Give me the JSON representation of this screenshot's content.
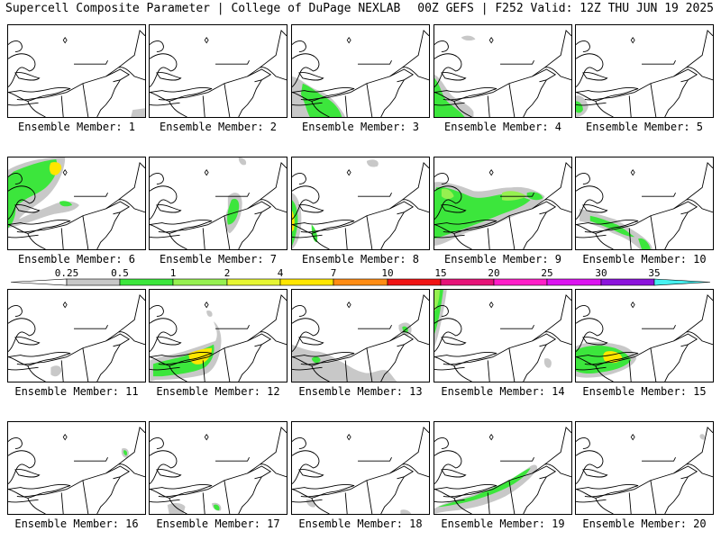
{
  "header": {
    "title_left": "Supercell Composite Parameter | College of DuPage NEXLAB",
    "title_right": "00Z GEFS | F252 Valid: 12Z THU JUN 19 2025"
  },
  "legend": {
    "labels": [
      "0.25",
      "0.5",
      "1",
      "2",
      "4",
      "7",
      "10",
      "15",
      "20",
      "25",
      "30",
      "35"
    ],
    "colors": [
      "#c8c8c8",
      "#3ce63c",
      "#96f050",
      "#e6f532",
      "#ffe600",
      "#ff8c14",
      "#f01414",
      "#e61478",
      "#ff1ec8",
      "#dc14f0",
      "#8c14dc",
      "#b450dc",
      "#46f0f0"
    ]
  },
  "panels": [
    {
      "label": "Ensemble Member: 1"
    },
    {
      "label": "Ensemble Member: 2"
    },
    {
      "label": "Ensemble Member: 3"
    },
    {
      "label": "Ensemble Member: 4"
    },
    {
      "label": "Ensemble Member: 5"
    },
    {
      "label": "Ensemble Member: 6"
    },
    {
      "label": "Ensemble Member: 7"
    },
    {
      "label": "Ensemble Member: 8"
    },
    {
      "label": "Ensemble Member: 9"
    },
    {
      "label": "Ensemble Member: 10"
    },
    {
      "label": "Ensemble Member: 11"
    },
    {
      "label": "Ensemble Member: 12"
    },
    {
      "label": "Ensemble Member: 13"
    },
    {
      "label": "Ensemble Member: 14"
    },
    {
      "label": "Ensemble Member: 15"
    },
    {
      "label": "Ensemble Member: 16"
    },
    {
      "label": "Ensemble Member: 17"
    },
    {
      "label": "Ensemble Member: 18"
    },
    {
      "label": "Ensemble Member: 19"
    },
    {
      "label": "Ensemble Member: 20"
    }
  ]
}
